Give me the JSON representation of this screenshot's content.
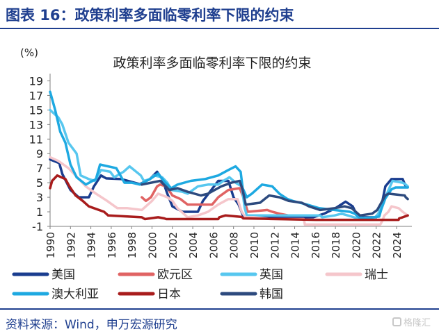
{
  "figure": {
    "title": "图表 16：政策利率多面临零利率下限的约束",
    "source": "资料来源：Wind，申万宏源研究",
    "watermark": "格隆汇"
  },
  "chart_data": {
    "type": "line",
    "title": "政策利率多面临零利率下限的约束",
    "unit_label": "(%)",
    "xlabel": "",
    "ylabel": "",
    "xlim": [
      1990,
      2025.5
    ],
    "ylim": [
      -1,
      20
    ],
    "y_ticks": [
      -1,
      1,
      3,
      5,
      7,
      9,
      11,
      13,
      15,
      17,
      19
    ],
    "x_ticks": [
      1990,
      1992,
      1994,
      1996,
      1998,
      2000,
      2002,
      2004,
      2006,
      2008,
      2010,
      2012,
      2014,
      2016,
      2018,
      2020,
      2022,
      2024
    ],
    "grid": false,
    "legend_position": "bottom",
    "series": [
      {
        "name": "美国",
        "color": "#1a3d8f",
        "points": [
          [
            1990,
            8.2
          ],
          [
            1990.9,
            7.7
          ],
          [
            1991.2,
            6.2
          ],
          [
            1992,
            4.0
          ],
          [
            1992.8,
            3.0
          ],
          [
            1993.8,
            3.0
          ],
          [
            1994.3,
            4.5
          ],
          [
            1995,
            6.0
          ],
          [
            1995.5,
            5.6
          ],
          [
            1997,
            5.5
          ],
          [
            1998.8,
            4.8
          ],
          [
            1999.8,
            5.5
          ],
          [
            2000.5,
            6.5
          ],
          [
            2001,
            5.5
          ],
          [
            2001.5,
            3.5
          ],
          [
            2002,
            1.75
          ],
          [
            2003,
            1.0
          ],
          [
            2004.5,
            1.0
          ],
          [
            2005,
            2.5
          ],
          [
            2006.5,
            5.25
          ],
          [
            2007.5,
            5.25
          ],
          [
            2008,
            3.0
          ],
          [
            2008.5,
            2.0
          ],
          [
            2009,
            0.25
          ],
          [
            2015.8,
            0.25
          ],
          [
            2016.9,
            0.75
          ],
          [
            2018,
            1.5
          ],
          [
            2019,
            2.4
          ],
          [
            2019.7,
            1.75
          ],
          [
            2020.2,
            0.25
          ],
          [
            2022,
            0.25
          ],
          [
            2022.4,
            1.0
          ],
          [
            2022.9,
            4.5
          ],
          [
            2023.5,
            5.5
          ],
          [
            2024.6,
            5.5
          ],
          [
            2024.9,
            4.5
          ],
          [
            2025.1,
            4.4
          ]
        ]
      },
      {
        "name": "欧元区",
        "color": "#e06363",
        "points": [
          [
            1999,
            3.0
          ],
          [
            1999.4,
            2.5
          ],
          [
            1999.9,
            3.0
          ],
          [
            2000.5,
            4.5
          ],
          [
            2000.8,
            4.75
          ],
          [
            2001.4,
            4.5
          ],
          [
            2002,
            3.25
          ],
          [
            2002.8,
            2.75
          ],
          [
            2003.5,
            2.0
          ],
          [
            2005.9,
            2.0
          ],
          [
            2006.5,
            3.0
          ],
          [
            2007.5,
            4.0
          ],
          [
            2008.6,
            4.25
          ],
          [
            2008.9,
            3.25
          ],
          [
            2009.4,
            1.0
          ],
          [
            2011.3,
            1.25
          ],
          [
            2011.8,
            1.0
          ],
          [
            2012.5,
            0.75
          ],
          [
            2013.4,
            0.5
          ]
        ]
      },
      {
        "name": "英国",
        "color": "#57c7ef",
        "points": [
          [
            1990,
            15.0
          ],
          [
            1990.8,
            14.0
          ],
          [
            1991.2,
            13.0
          ],
          [
            1991.8,
            10.5
          ],
          [
            1992.6,
            9.0
          ],
          [
            1993,
            6.0
          ],
          [
            1993.8,
            5.5
          ],
          [
            1994.4,
            5.25
          ],
          [
            1995,
            6.75
          ],
          [
            1995.9,
            6.5
          ],
          [
            1996.3,
            5.75
          ],
          [
            1997.2,
            6.5
          ],
          [
            1997.8,
            7.25
          ],
          [
            1998.9,
            6.0
          ],
          [
            1999.2,
            5.25
          ],
          [
            1999.8,
            5.5
          ],
          [
            2000.2,
            6.0
          ],
          [
            2001,
            5.75
          ],
          [
            2001.5,
            5.0
          ],
          [
            2001.9,
            4.0
          ],
          [
            2003,
            3.75
          ],
          [
            2003.5,
            3.5
          ],
          [
            2004.5,
            4.5
          ],
          [
            2005.5,
            4.75
          ],
          [
            2006.5,
            4.75
          ],
          [
            2007,
            5.25
          ],
          [
            2007.6,
            5.75
          ],
          [
            2008.2,
            5.0
          ],
          [
            2008.8,
            4.5
          ],
          [
            2009.1,
            1.5
          ],
          [
            2009.3,
            0.5
          ],
          [
            2016.5,
            0.5
          ],
          [
            2016.7,
            0.25
          ],
          [
            2017.9,
            0.5
          ],
          [
            2018.6,
            0.75
          ],
          [
            2020.2,
            0.1
          ],
          [
            2021.9,
            0.25
          ],
          [
            2022.2,
            0.75
          ],
          [
            2022.9,
            3.0
          ],
          [
            2023.6,
            5.25
          ],
          [
            2024.6,
            5.0
          ],
          [
            2024.9,
            4.75
          ],
          [
            2025.1,
            4.5
          ]
        ]
      },
      {
        "name": "瑞士",
        "color": "#f5c6cb",
        "points": [
          [
            1990,
            8.5
          ],
          [
            1990.8,
            8.0
          ],
          [
            1991.8,
            7.0
          ],
          [
            1992.5,
            6.0
          ],
          [
            1993.5,
            4.5
          ],
          [
            1994.5,
            3.5
          ],
          [
            1995.6,
            2.5
          ],
          [
            1996.6,
            1.5
          ],
          [
            1997.6,
            1.5
          ],
          [
            1999,
            1.25
          ],
          [
            2000,
            2.5
          ],
          [
            2000.6,
            3.5
          ],
          [
            2001.5,
            3.0
          ],
          [
            2002,
            2.5
          ],
          [
            2002.5,
            1.5
          ],
          [
            2003.5,
            0.25
          ],
          [
            2004.5,
            0.5
          ],
          [
            2005.5,
            1.0
          ],
          [
            2006.5,
            2.0
          ],
          [
            2007.5,
            2.75
          ],
          [
            2008.4,
            2.75
          ],
          [
            2008.8,
            1.0
          ],
          [
            2009.2,
            0.25
          ],
          [
            2010,
            0.25
          ],
          [
            2011.6,
            0.0
          ],
          [
            2014.9,
            0.0
          ],
          [
            2015,
            -0.75
          ],
          [
            2022.4,
            -0.75
          ],
          [
            2022.6,
            -0.25
          ],
          [
            2022.8,
            0.5
          ],
          [
            2023.2,
            1.0
          ],
          [
            2023.5,
            1.75
          ],
          [
            2024.2,
            1.5
          ],
          [
            2024.6,
            1.0
          ],
          [
            2025.1,
            0.5
          ]
        ]
      },
      {
        "name": "澳大利亚",
        "color": "#1ea9e1",
        "points": [
          [
            1990,
            17.5
          ],
          [
            1990.5,
            15.0
          ],
          [
            1991,
            12.0
          ],
          [
            1991.5,
            10.5
          ],
          [
            1992,
            7.5
          ],
          [
            1992.6,
            5.75
          ],
          [
            1993.5,
            4.75
          ],
          [
            1994.5,
            5.5
          ],
          [
            1994.9,
            7.5
          ],
          [
            1996.5,
            7.0
          ],
          [
            1997.3,
            5.0
          ],
          [
            1998,
            5.0
          ],
          [
            1998.8,
            4.75
          ],
          [
            1999.8,
            5.5
          ],
          [
            2000.6,
            6.25
          ],
          [
            2001.3,
            5.0
          ],
          [
            2001.9,
            4.25
          ],
          [
            2002.5,
            4.75
          ],
          [
            2003.8,
            5.25
          ],
          [
            2005.2,
            5.5
          ],
          [
            2006.5,
            6.0
          ],
          [
            2007.5,
            6.75
          ],
          [
            2008.2,
            7.25
          ],
          [
            2008.7,
            6.5
          ],
          [
            2008.9,
            4.25
          ],
          [
            2009.3,
            3.0
          ],
          [
            2009.8,
            3.5
          ],
          [
            2010.8,
            4.75
          ],
          [
            2011.8,
            4.5
          ],
          [
            2012.5,
            3.5
          ],
          [
            2013.3,
            2.75
          ],
          [
            2013.8,
            2.5
          ],
          [
            2015.2,
            2.0
          ],
          [
            2016.4,
            1.5
          ],
          [
            2019.4,
            1.0
          ],
          [
            2019.9,
            0.75
          ],
          [
            2020.3,
            0.25
          ],
          [
            2020.9,
            0.1
          ],
          [
            2022.3,
            0.35
          ],
          [
            2022.5,
            1.35
          ],
          [
            2022.9,
            2.85
          ],
          [
            2023.5,
            4.1
          ],
          [
            2023.9,
            4.35
          ],
          [
            2025.1,
            4.35
          ]
        ]
      },
      {
        "name": "日本",
        "color": "#a81c1c",
        "points": [
          [
            1990,
            4.25
          ],
          [
            1990.2,
            5.25
          ],
          [
            1990.7,
            6.0
          ],
          [
            1991.5,
            5.5
          ],
          [
            1991.9,
            4.5
          ],
          [
            1992.5,
            3.25
          ],
          [
            1993.2,
            2.5
          ],
          [
            1993.8,
            1.75
          ],
          [
            1995.3,
            1.0
          ],
          [
            1995.7,
            0.5
          ],
          [
            1999,
            0.25
          ],
          [
            1999.3,
            0.0
          ],
          [
            2000.6,
            0.25
          ],
          [
            2001.2,
            0.1
          ],
          [
            2001.4,
            0.0
          ],
          [
            2006.5,
            0.0
          ],
          [
            2006.6,
            0.25
          ],
          [
            2007.2,
            0.5
          ],
          [
            2008.8,
            0.3
          ],
          [
            2008.95,
            0.1
          ],
          [
            2016.1,
            -0.1
          ],
          [
            2024.2,
            -0.1
          ],
          [
            2024.25,
            0.1
          ],
          [
            2024.6,
            0.25
          ],
          [
            2025.1,
            0.5
          ]
        ]
      },
      {
        "name": "韩国",
        "color": "#2d4a7e",
        "points": [
          [
            1999,
            4.75
          ],
          [
            2000.8,
            5.25
          ],
          [
            2001.7,
            4.0
          ],
          [
            2002.5,
            4.25
          ],
          [
            2003.5,
            3.75
          ],
          [
            2004.8,
            3.25
          ],
          [
            2005.5,
            3.5
          ],
          [
            2006.8,
            4.5
          ],
          [
            2007.8,
            5.0
          ],
          [
            2008.6,
            5.25
          ],
          [
            2008.9,
            4.0
          ],
          [
            2009.2,
            2.0
          ],
          [
            2010.6,
            2.25
          ],
          [
            2011.5,
            3.25
          ],
          [
            2012.5,
            3.0
          ],
          [
            2013.4,
            2.5
          ],
          [
            2014.7,
            2.25
          ],
          [
            2015.4,
            1.75
          ],
          [
            2016.5,
            1.25
          ],
          [
            2017.9,
            1.5
          ],
          [
            2018.9,
            1.75
          ],
          [
            2019.6,
            1.5
          ],
          [
            2020.2,
            0.75
          ],
          [
            2020.4,
            0.5
          ],
          [
            2021.6,
            0.75
          ],
          [
            2022.1,
            1.25
          ],
          [
            2022.6,
            2.5
          ],
          [
            2022.9,
            3.25
          ],
          [
            2023.2,
            3.5
          ],
          [
            2024.8,
            3.25
          ],
          [
            2024.9,
            3.0
          ],
          [
            2025.1,
            2.75
          ]
        ]
      }
    ]
  }
}
